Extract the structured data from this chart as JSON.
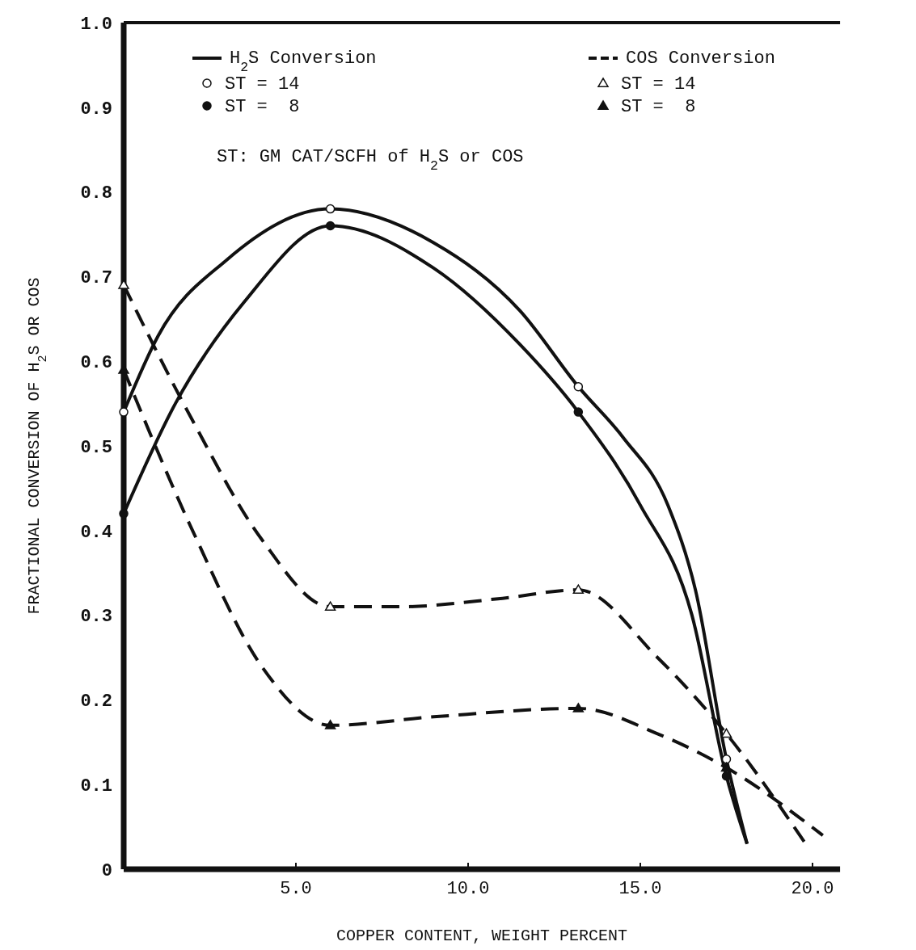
{
  "chart_data": {
    "type": "line",
    "xlabel": "COPPER CONTENT, WEIGHT PERCENT",
    "ylabel": "FRACTIONAL CONVERSION OF H$_{2}$S OR COS",
    "xlim": [
      0,
      20.8
    ],
    "xticks": [
      {
        "value": 5,
        "label": "5.0"
      },
      {
        "value": 10,
        "label": "10.0"
      },
      {
        "value": 15,
        "label": "15.0"
      },
      {
        "value": 20,
        "label": "20.0"
      }
    ],
    "ylim": [
      0,
      1
    ],
    "yticks": [
      0,
      0.1,
      0.2,
      0.3,
      0.4,
      0.5,
      0.6,
      0.7,
      0.8,
      0.9,
      {
        "value": 1,
        "label": "1.0"
      }
    ],
    "grid": false,
    "legend": "top",
    "annotations": [
      "ST: GM CAT/SCFH of H$_{2}$S or COS"
    ],
    "series": [
      {
        "name": "H$_{2}$S Conversion",
        "line_style": "solid",
        "color": "#111111",
        "x": [
          0,
          1,
          3,
          6,
          9,
          11.5,
          13.2,
          14.5,
          15.8,
          16.6,
          17.5,
          18.1
        ],
        "values": [
          0.54,
          0.63,
          0.72,
          0.78,
          0.74,
          0.66,
          0.57,
          0.51,
          0.43,
          0.33,
          0.13,
          0.03
        ]
      },
      {
        "line_style": "solid",
        "color": "#111111",
        "x": [
          0,
          1.5,
          3.5,
          6,
          9,
          11.5,
          13.2,
          15,
          16.5,
          17.5,
          18.1
        ],
        "values": [
          0.42,
          0.55,
          0.67,
          0.76,
          0.71,
          0.62,
          0.54,
          0.43,
          0.3,
          0.11,
          0.03
        ]
      },
      {
        "name": "COS Conversion",
        "line_style": "dashed",
        "color": "#111111",
        "x": [
          0,
          2,
          4,
          6,
          8,
          11,
          13.2,
          15.5,
          17.5,
          19.8
        ],
        "values": [
          0.69,
          0.53,
          0.39,
          0.31,
          0.31,
          0.32,
          0.33,
          0.25,
          0.16,
          0.03
        ]
      },
      {
        "line_style": "dashed",
        "color": "#111111",
        "x": [
          0,
          2,
          4,
          6,
          9,
          13.2,
          15.5,
          17.5,
          20.3
        ],
        "values": [
          0.59,
          0.4,
          0.24,
          0.17,
          0.18,
          0.19,
          0.16,
          0.12,
          0.04
        ]
      },
      {
        "name": "ST = 14",
        "type": "scatter",
        "marker": "circle",
        "color": "#ffffff",
        "x": [
          0,
          6,
          13.2,
          17.5
        ],
        "values": [
          0.54,
          0.78,
          0.57,
          0.13
        ]
      },
      {
        "name": "ST =  8",
        "type": "scatter",
        "marker": "circle",
        "color": "#111111",
        "x": [
          0,
          6,
          13.2,
          17.5
        ],
        "values": [
          0.42,
          0.76,
          0.54,
          0.11
        ]
      },
      {
        "name": "ST = 14",
        "type": "scatter",
        "marker": "triangle",
        "color": "#ffffff",
        "x": [
          0,
          6,
          13.2,
          17.5
        ],
        "values": [
          0.69,
          0.31,
          0.33,
          0.16
        ]
      },
      {
        "name": "ST =  8",
        "type": "scatter",
        "marker": "triangle",
        "color": "#111111",
        "x": [
          0,
          6,
          13.2,
          17.5
        ],
        "values": [
          0.59,
          0.17,
          0.19,
          0.12
        ]
      }
    ]
  }
}
